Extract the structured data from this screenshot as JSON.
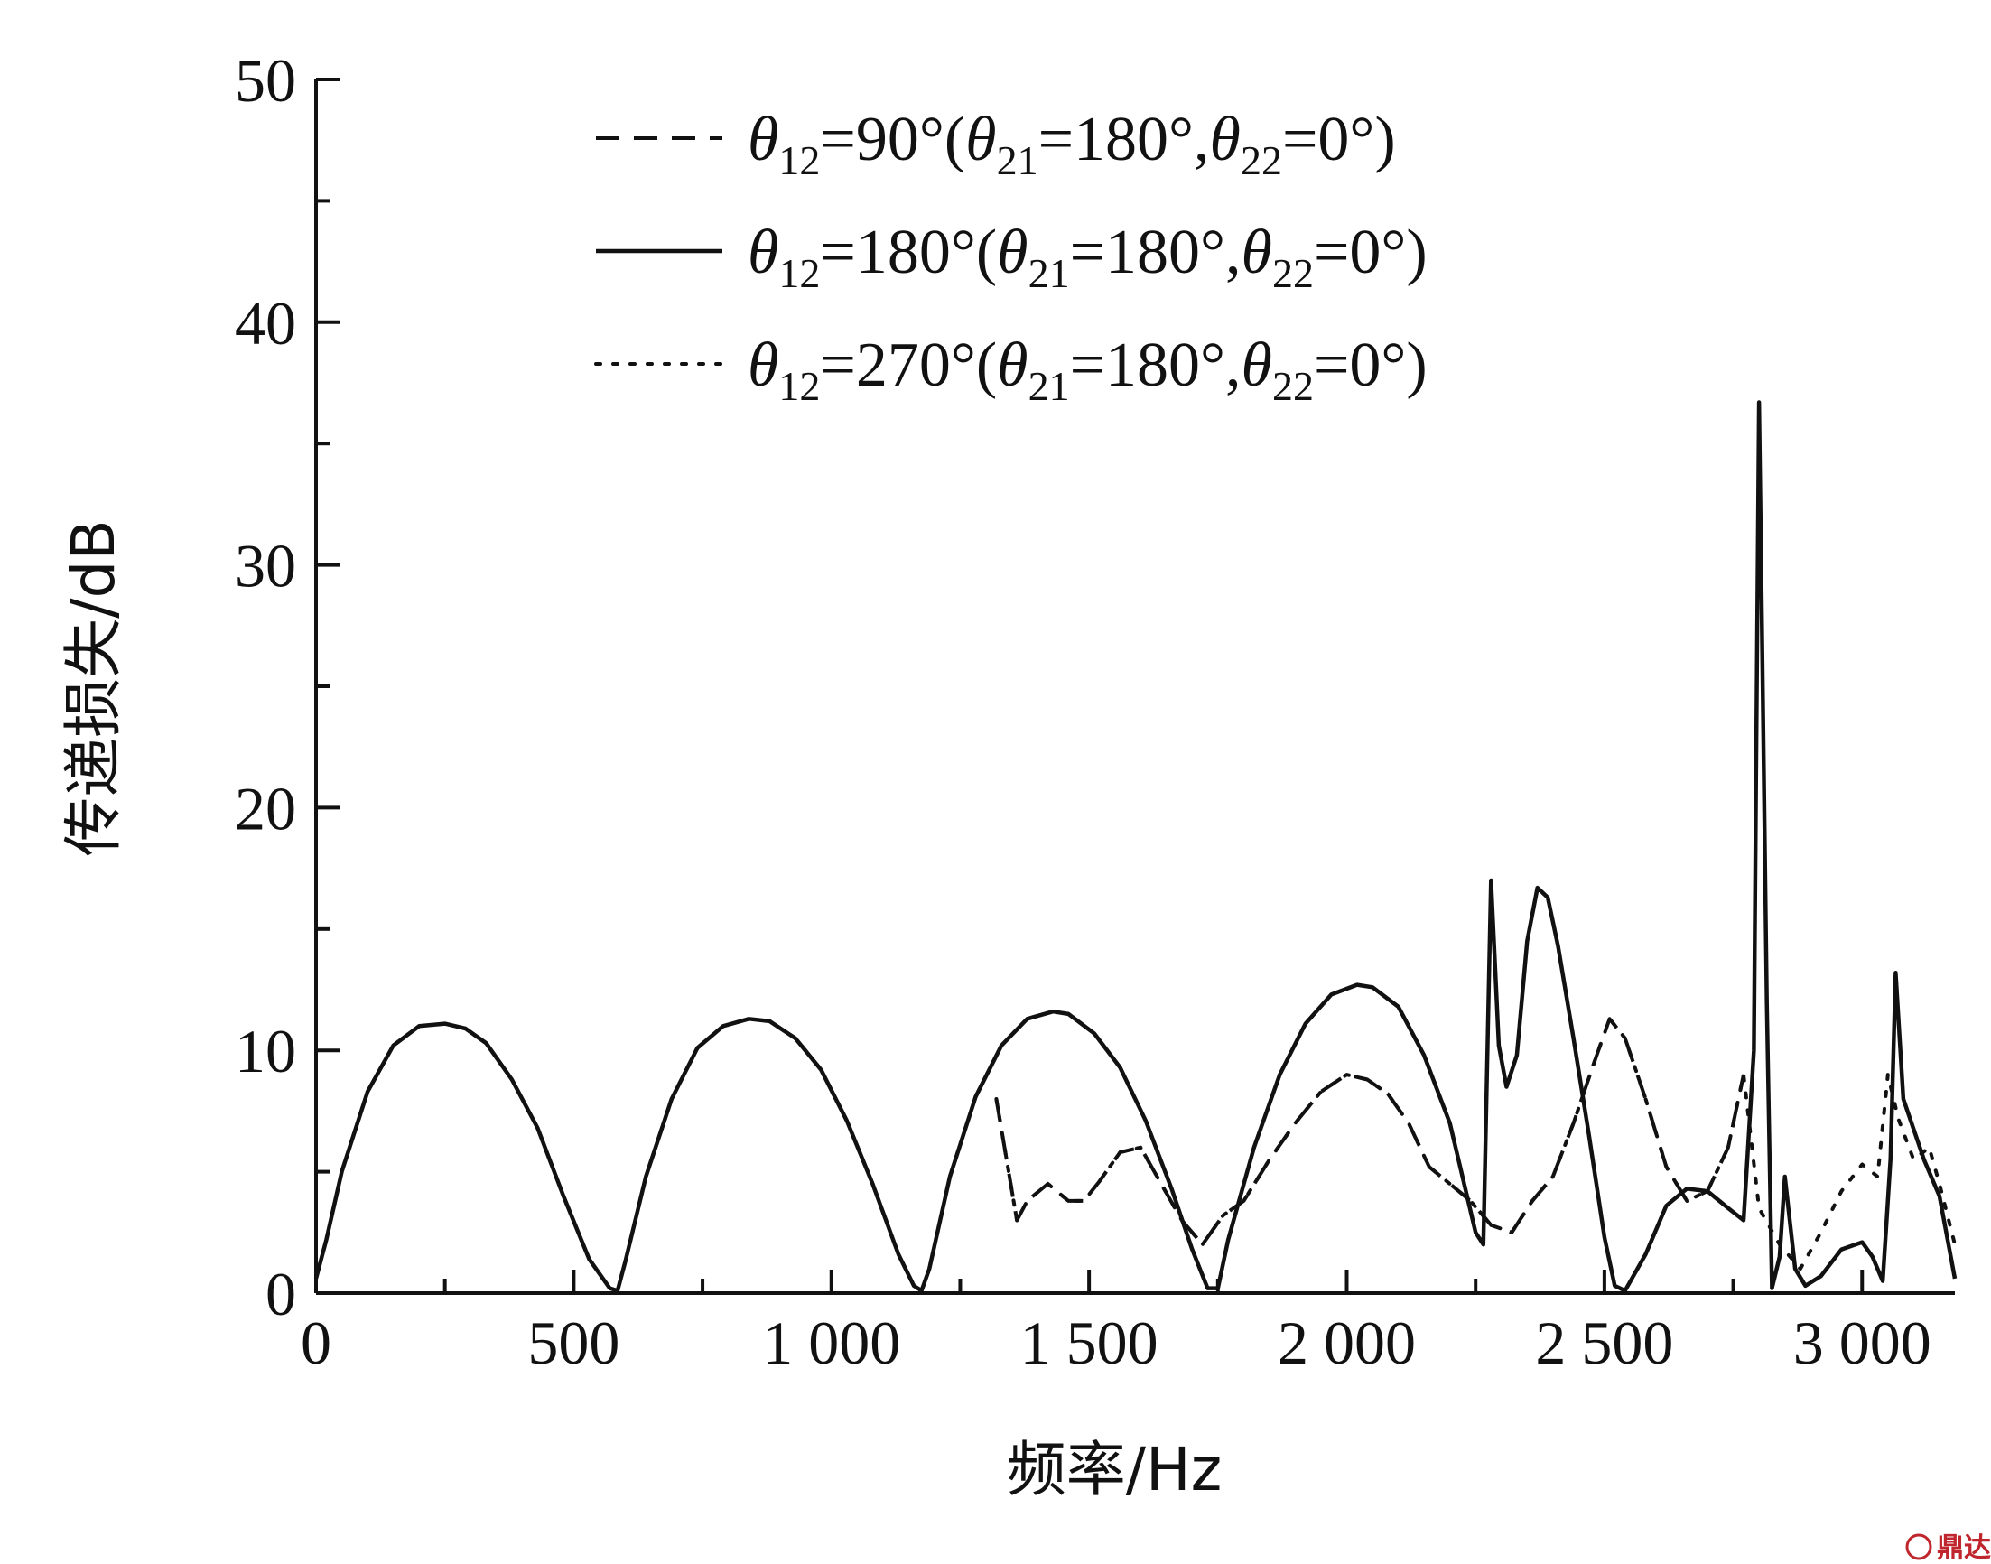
{
  "chart_data": {
    "type": "line",
    "xlabel": "频率/Hz",
    "ylabel": "传递损失/dB",
    "xlim": [
      0,
      3180
    ],
    "ylim": [
      0,
      50
    ],
    "x_ticks": [
      0,
      500,
      1000,
      1500,
      2000,
      2500,
      3000
    ],
    "x_tick_labels": [
      "0",
      "500",
      "1 000",
      "1 500",
      "2 000",
      "2 500",
      "3 000"
    ],
    "y_ticks": [
      0,
      10,
      20,
      30,
      40,
      50
    ],
    "y_tick_labels": [
      "0",
      "10",
      "20",
      "30",
      "40",
      "50"
    ],
    "grid": false,
    "legend_position": "top-right",
    "series": [
      {
        "name": "θ12=90°(θ21=180°,θ22=0°)",
        "legend": {
          "theta": "θ",
          "sub": "12",
          "value": "=90°(",
          "theta2": "θ",
          "sub2": "21",
          "value2": "=180°,",
          "theta3": "θ",
          "sub3": "22",
          "value3": "=0°)"
        },
        "style": "dashed",
        "x": [
          1320,
          1360,
          1380,
          1420,
          1460,
          1490,
          1520,
          1560,
          1600,
          1640,
          1680,
          1720,
          1760,
          1800,
          1850,
          1900,
          1950,
          2000,
          2040,
          2080,
          2120,
          2160,
          2200,
          2240,
          2280,
          2320,
          2360,
          2400,
          2440,
          2480,
          2510,
          2540,
          2580,
          2620,
          2660,
          2700,
          2740,
          2770
        ],
        "values": [
          8.0,
          3.0,
          3.8,
          4.5,
          3.8,
          3.8,
          4.6,
          5.8,
          6.0,
          4.5,
          3.0,
          2.0,
          3.2,
          3.8,
          5.5,
          7.0,
          8.3,
          9.0,
          8.8,
          8.2,
          7.0,
          5.2,
          4.5,
          3.8,
          2.8,
          2.5,
          3.8,
          4.8,
          7.0,
          9.5,
          11.3,
          10.5,
          8.0,
          5.2,
          3.8,
          4.2,
          6.0,
          9.0
        ]
      },
      {
        "name": "θ12=180°(θ21=180°,θ22=0°)",
        "legend": {
          "theta": "θ",
          "sub": "12",
          "value": "=180°(",
          "theta2": "θ",
          "sub2": "21",
          "value2": "=180°,",
          "theta3": "θ",
          "sub3": "22",
          "value3": "=0°)"
        },
        "style": "solid",
        "x": [
          0,
          20,
          50,
          100,
          150,
          200,
          250,
          290,
          330,
          380,
          430,
          480,
          530,
          570,
          585,
          600,
          640,
          690,
          740,
          790,
          840,
          880,
          930,
          980,
          1030,
          1080,
          1130,
          1160,
          1175,
          1190,
          1230,
          1280,
          1330,
          1380,
          1430,
          1460,
          1510,
          1560,
          1610,
          1660,
          1700,
          1730,
          1750,
          1770,
          1820,
          1870,
          1920,
          1970,
          2020,
          2050,
          2100,
          2150,
          2200,
          2250,
          2265,
          2280,
          2295,
          2310,
          2330,
          2350,
          2370,
          2390,
          2410,
          2440,
          2470,
          2500,
          2520,
          2540,
          2580,
          2620,
          2660,
          2700,
          2740,
          2770,
          2790,
          2800,
          2815,
          2825,
          2840,
          2850,
          2870,
          2890,
          2920,
          2960,
          3000,
          3020,
          3040,
          3055,
          3065,
          3080,
          3120,
          3150,
          3180
        ],
        "values": [
          0.6,
          2.2,
          5.0,
          8.3,
          10.2,
          11.0,
          11.1,
          10.9,
          10.3,
          8.8,
          6.8,
          4.0,
          1.4,
          0.2,
          0.1,
          1.3,
          4.8,
          8.0,
          10.1,
          11.0,
          11.3,
          11.2,
          10.5,
          9.2,
          7.1,
          4.5,
          1.6,
          0.3,
          0.1,
          1.0,
          4.8,
          8.1,
          10.2,
          11.3,
          11.6,
          11.5,
          10.7,
          9.3,
          7.1,
          4.3,
          1.8,
          0.2,
          0.2,
          2.2,
          6.0,
          9.0,
          11.1,
          12.3,
          12.7,
          12.6,
          11.8,
          9.8,
          7.0,
          2.5,
          2.0,
          17.0,
          10.2,
          8.5,
          9.8,
          14.5,
          16.7,
          16.3,
          14.3,
          10.5,
          6.5,
          2.3,
          0.3,
          0.1,
          1.6,
          3.6,
          4.3,
          4.2,
          3.5,
          3.0,
          10.0,
          36.7,
          12.0,
          0.2,
          1.5,
          4.8,
          1.0,
          0.3,
          0.7,
          1.8,
          2.1,
          1.5,
          0.5,
          5.5,
          13.2,
          8.0,
          5.5,
          4.0,
          0.6
        ]
      },
      {
        "name": "θ12=270°(θ21=180°,θ22=0°)",
        "legend": {
          "theta": "θ",
          "sub": "12",
          "value": "=270°(",
          "theta2": "θ",
          "sub2": "21",
          "value2": "=180°,",
          "theta3": "θ",
          "sub3": "22",
          "value3": "=0°)"
        },
        "style": "dotted",
        "x": [
          1320,
          1360,
          1380,
          1420,
          1460,
          1490,
          1520,
          1560,
          1600,
          1640,
          1680,
          1720,
          1760,
          1800,
          1850,
          1900,
          1950,
          2000,
          2040,
          2080,
          2120,
          2160,
          2200,
          2240,
          2280,
          2320,
          2360,
          2400,
          2440,
          2480,
          2510,
          2540,
          2580,
          2620,
          2660,
          2700,
          2740,
          2770,
          2800,
          2840,
          2880,
          2920,
          2960,
          3000,
          3030,
          3050,
          3070,
          3100,
          3130,
          3150,
          3180
        ],
        "values": [
          8.0,
          3.0,
          3.8,
          4.5,
          3.8,
          3.8,
          4.6,
          5.8,
          6.0,
          4.5,
          3.0,
          2.0,
          3.2,
          3.8,
          5.5,
          7.0,
          8.3,
          9.0,
          8.8,
          8.2,
          7.0,
          5.2,
          4.5,
          3.8,
          2.8,
          2.5,
          3.8,
          4.8,
          7.0,
          9.5,
          11.3,
          10.5,
          8.0,
          5.2,
          3.8,
          4.2,
          6.0,
          9.0,
          3.5,
          2.0,
          1.0,
          2.5,
          4.2,
          5.3,
          4.8,
          9.0,
          7.2,
          5.5,
          6.0,
          4.5,
          2.0
        ]
      }
    ]
  },
  "watermark": {
    "text": "鼎达信"
  }
}
